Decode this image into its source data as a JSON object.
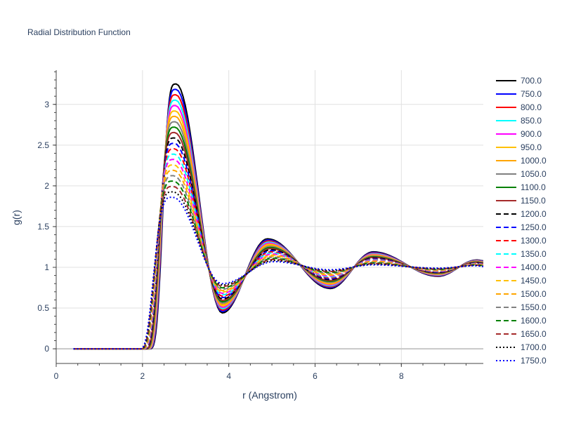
{
  "chart_data": {
    "type": "line",
    "title": "Radial Distribution Function",
    "xlabel": "r (Angstrom)",
    "ylabel": "g(r)",
    "xlim": [
      0,
      9.9
    ],
    "ylim": [
      -0.18,
      3.42
    ],
    "xticks": [
      "0",
      "2",
      "4",
      "6",
      "8"
    ],
    "yticks": [
      "0",
      "0.5",
      "1",
      "1.5",
      "2",
      "2.5",
      "3"
    ],
    "grid": true,
    "legend_position": "right",
    "peak_model": {
      "onset_r_low_T": [
        2.15,
        2.5
      ],
      "onset_r_high_T": [
        1.9,
        2.5
      ],
      "peak1_r": [
        2.78,
        2.7
      ],
      "peak1_height": [
        3.25,
        1.86
      ],
      "min1_r": [
        3.85,
        3.85
      ],
      "min1_depth": [
        0.44,
        0.8
      ],
      "peak2_r": [
        4.9,
        5.05
      ],
      "peak2_height": [
        1.35,
        1.07
      ],
      "min2_r": [
        6.35,
        6.35
      ],
      "min2_depth": [
        0.74,
        0.97
      ],
      "peak3_r": [
        7.35,
        7.35
      ],
      "peak3_height": [
        1.19,
        1.03
      ],
      "min3_r": [
        8.85,
        8.85
      ],
      "min3_depth": [
        0.89,
        0.99
      ],
      "peak4_r": [
        9.75,
        9.75
      ],
      "peak4_height": [
        1.09,
        1.02
      ]
    },
    "series": [
      {
        "name": "700.0",
        "color": "#000000",
        "dash": "solid"
      },
      {
        "name": "750.0",
        "color": "#0000ff",
        "dash": "solid"
      },
      {
        "name": "800.0",
        "color": "#ff0000",
        "dash": "solid"
      },
      {
        "name": "850.0",
        "color": "#00ffff",
        "dash": "solid"
      },
      {
        "name": "900.0",
        "color": "#ff00ff",
        "dash": "solid"
      },
      {
        "name": "950.0",
        "color": "#ffc000",
        "dash": "solid"
      },
      {
        "name": "1000.0",
        "color": "#ffa500",
        "dash": "solid"
      },
      {
        "name": "1050.0",
        "color": "#808080",
        "dash": "solid"
      },
      {
        "name": "1100.0",
        "color": "#008000",
        "dash": "solid"
      },
      {
        "name": "1150.0",
        "color": "#a52a2a",
        "dash": "solid"
      },
      {
        "name": "1200.0",
        "color": "#000000",
        "dash": "dash"
      },
      {
        "name": "1250.0",
        "color": "#0000ff",
        "dash": "dash"
      },
      {
        "name": "1300.0",
        "color": "#ff0000",
        "dash": "dash"
      },
      {
        "name": "1350.0",
        "color": "#00ffff",
        "dash": "dash"
      },
      {
        "name": "1400.0",
        "color": "#ff00ff",
        "dash": "dash"
      },
      {
        "name": "1450.0",
        "color": "#ffc000",
        "dash": "dash"
      },
      {
        "name": "1500.0",
        "color": "#ffa500",
        "dash": "dash"
      },
      {
        "name": "1550.0",
        "color": "#808080",
        "dash": "dash"
      },
      {
        "name": "1600.0",
        "color": "#008000",
        "dash": "dash"
      },
      {
        "name": "1650.0",
        "color": "#a52a2a",
        "dash": "dash"
      },
      {
        "name": "1700.0",
        "color": "#000000",
        "dash": "dot"
      },
      {
        "name": "1750.0",
        "color": "#0000ff",
        "dash": "dot"
      }
    ]
  }
}
